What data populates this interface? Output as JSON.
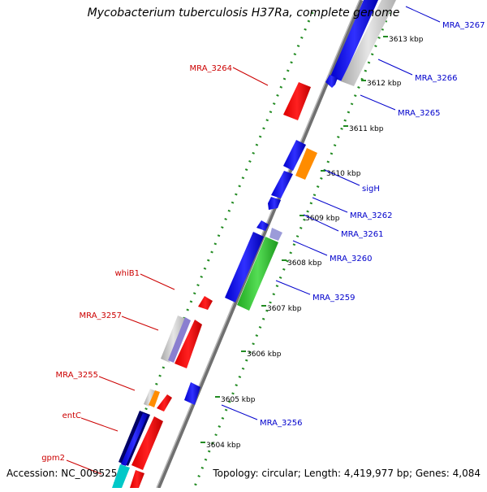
{
  "title": "Mycobacterium tuberculosis H37Ra, complete genome",
  "footer": {
    "accession": "Accession: NC_009525",
    "topology": "Topology: circular; Length: 4,419,977 bp; Genes: 4,084"
  },
  "colors": {
    "forward_gene": "#0000ff",
    "reverse_gene": "#ff0000",
    "rna_gene": "#ff8c00",
    "other_gene": "#32cd32",
    "pseudogene": "#c0c0c0",
    "forward_label": "#0000cc",
    "reverse_label": "#cc0000",
    "backbone": "#808080",
    "gc_dots": "#228b22"
  },
  "ruler": {
    "unit": "kbp",
    "ticks": [
      "3604 kbp",
      "3605 kbp",
      "3606 kbp",
      "3607 kbp",
      "3608 kbp",
      "3609 kbp",
      "3610 kbp",
      "3611 kbp",
      "3612 kbp",
      "3613 kbp"
    ]
  },
  "gene_labels": {
    "forward": [
      "MRA_3267",
      "MRA_3266",
      "MRA_3265",
      "sigH",
      "MRA_3262",
      "MRA_3261",
      "MRA_3260",
      "MRA_3259",
      "MRA_3256"
    ],
    "reverse": [
      "MRA_3264",
      "whiB1",
      "MRA_3257",
      "MRA_3255",
      "entC",
      "gpm2"
    ]
  }
}
